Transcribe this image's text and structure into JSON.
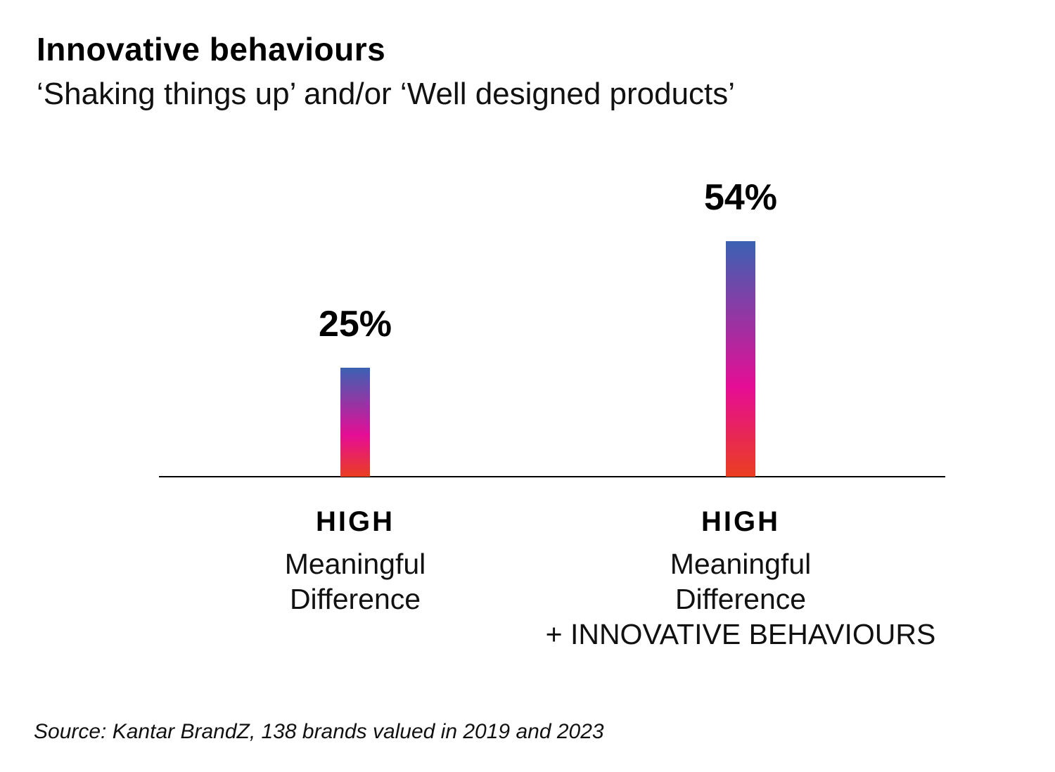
{
  "header": {
    "title": "Innovative behaviours",
    "subtitle": "‘Shaking things up’ and/or ‘Well designed products’"
  },
  "chart_data": {
    "type": "bar",
    "title": "Innovative behaviours",
    "subtitle": "‘Shaking things up’ and/or ‘Well designed products’",
    "categories": [
      "HIGH Meaningful Difference",
      "HIGH Meaningful Difference + INNOVATIVE BEHAVIOURS"
    ],
    "values": [
      25,
      54
    ],
    "value_labels": [
      "25%",
      "54%"
    ],
    "ylabel": "",
    "xlabel": "",
    "ylim": [
      0,
      60
    ],
    "grid": false,
    "legend": false,
    "bar_gradient": [
      "#3B62B3",
      "#E60D95",
      "#EA3E20"
    ],
    "gradient_mid_stop_pct": 62
  },
  "bars": [
    {
      "value_label": "25%",
      "cap_label": "HIGH",
      "sub_line_1": "Meaningful",
      "sub_line_2": "Difference",
      "sub_line_3": ""
    },
    {
      "value_label": "54%",
      "cap_label": "HIGH",
      "sub_line_1": "Meaningful",
      "sub_line_2": "Difference",
      "sub_line_3": "+ INNOVATIVE BEHAVIOURS"
    }
  ],
  "footer": {
    "source": "Source: Kantar BrandZ, 138 brands valued in 2019 and 2023"
  },
  "colors": {
    "background": "#FFFFFF",
    "text": "#000000",
    "axis": "#000000"
  }
}
